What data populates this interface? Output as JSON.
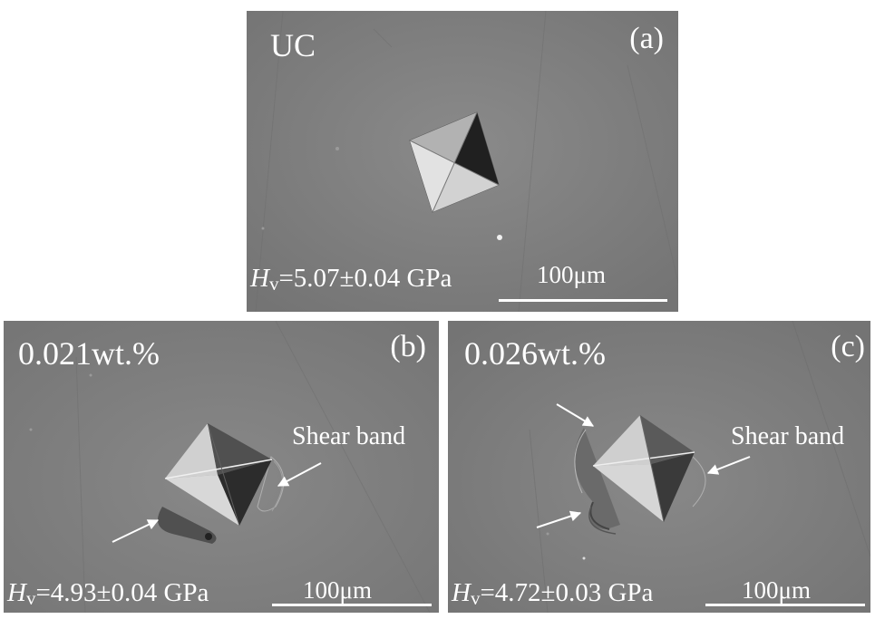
{
  "panels": [
    {
      "id": "a",
      "letter": "(a)",
      "sample": "UC",
      "hv_symbol": "H",
      "hv_sub": "v",
      "hv_value": "=5.07±0.04 GPa",
      "scale_label": "100μm"
    },
    {
      "id": "b",
      "letter": "(b)",
      "sample": "0.021wt.%",
      "hv_symbol": "H",
      "hv_sub": "v",
      "hv_value": "=4.93±0.04 GPa",
      "scale_label": "100μm",
      "annotation": "Shear band"
    },
    {
      "id": "c",
      "letter": "(c)",
      "sample": "0.026wt.%",
      "hv_symbol": "H",
      "hv_sub": "v",
      "hv_value": "=4.72±0.03 GPa",
      "scale_label": "100μm",
      "annotation": "Shear band"
    }
  ],
  "colors": {
    "background": "#808080",
    "text": "#ffffff",
    "frame": "#ffffff"
  }
}
